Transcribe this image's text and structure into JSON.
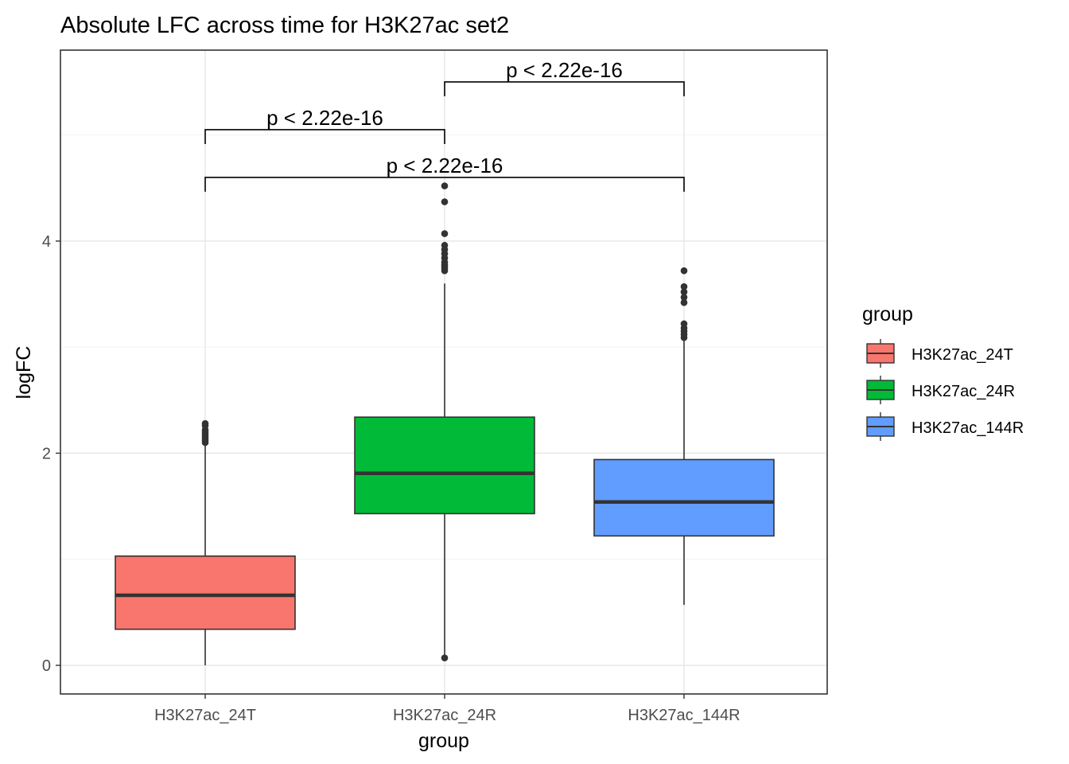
{
  "chart_data": {
    "type": "boxplot",
    "title": "Absolute LFC across time for H3K27ac set2",
    "xlabel": "group",
    "ylabel": "logFC",
    "categories": [
      "H3K27ac_24T",
      "H3K27ac_24R",
      "H3K27ac_144R"
    ],
    "ylim": [
      -0.27,
      5.8
    ],
    "yticks": [
      0,
      2,
      4
    ],
    "grid": true,
    "legend": {
      "title": "group",
      "placement": "right",
      "entries": [
        "H3K27ac_24T",
        "H3K27ac_24R",
        "H3K27ac_144R"
      ]
    },
    "series": [
      {
        "name": "H3K27ac_24T",
        "color": "#F8766D",
        "whisker_low": 0.0,
        "q1": 0.34,
        "median": 0.66,
        "q3": 1.03,
        "whisker_high": 2.08,
        "outliers": [
          2.1,
          2.12,
          2.14,
          2.16,
          2.18,
          2.2,
          2.22,
          2.26,
          2.28
        ]
      },
      {
        "name": "H3K27ac_24R",
        "color": "#00BA38",
        "whisker_low": 0.07,
        "q1": 1.43,
        "median": 1.81,
        "q3": 2.34,
        "whisker_high": 3.6,
        "outliers": [
          0.07,
          3.72,
          3.74,
          3.76,
          3.78,
          3.8,
          3.84,
          3.88,
          3.92,
          3.96,
          4.07,
          4.37,
          4.52
        ]
      },
      {
        "name": "H3K27ac_144R",
        "color": "#619CFF",
        "whisker_low": 0.57,
        "q1": 1.22,
        "median": 1.54,
        "q3": 1.94,
        "whisker_high": 3.06,
        "outliers": [
          3.09,
          3.12,
          3.15,
          3.18,
          3.22,
          3.42,
          3.47,
          3.52,
          3.57,
          3.72
        ]
      }
    ],
    "comparisons": [
      {
        "from": 1,
        "to": 2,
        "y": 5.05,
        "label": "p < 2.22e-16"
      },
      {
        "from": 2,
        "to": 3,
        "y": 5.5,
        "label": "p < 2.22e-16"
      },
      {
        "from": 1,
        "to": 3,
        "y": 4.6,
        "label": "p < 2.22e-16"
      }
    ]
  }
}
